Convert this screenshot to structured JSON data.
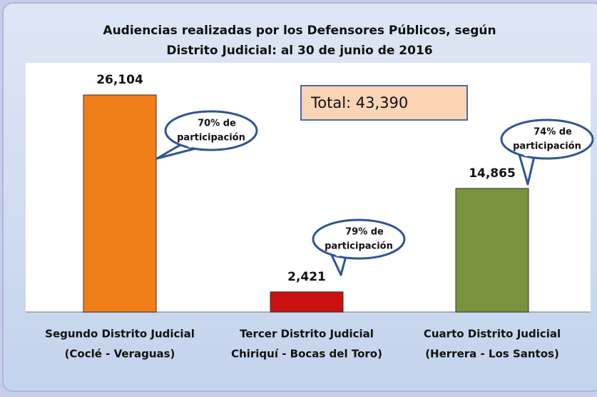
{
  "chart_data": {
    "type": "bar",
    "title": [
      "Audiencias realizadas por los Defensores Públicos, según",
      "Distrito Judicial: al 30 de junio de 2016"
    ],
    "categories": [
      [
        "Segundo Distrito Judicial",
        "(Coclé - Veraguas)"
      ],
      [
        "Tercer Distrito Judicial",
        "Chiriquí - Bocas del Toro)"
      ],
      [
        "Cuarto Distrito Judicial",
        "(Herrera - Los Santos)"
      ]
    ],
    "values": [
      26104,
      2421,
      14865
    ],
    "value_labels": [
      "26,104",
      "2,421",
      "14,865"
    ],
    "colors": [
      "#f07f1a",
      "#cc1010",
      "#77933c"
    ],
    "annotations": [
      [
        "70% de",
        "participación"
      ],
      [
        "79% de",
        "participación"
      ],
      [
        "74% de",
        "participación"
      ]
    ],
    "total": "Total: 43,390"
  }
}
